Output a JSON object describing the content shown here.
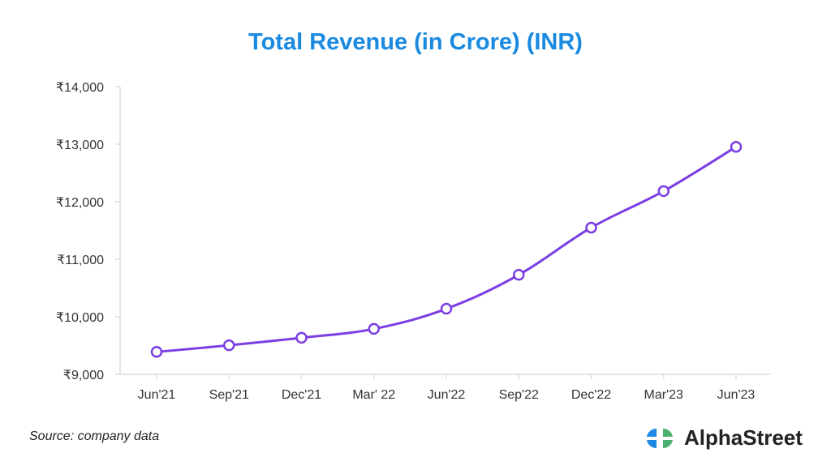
{
  "chart_data": {
    "type": "line",
    "title": "Total Revenue (in Crore) (INR)",
    "xlabel": "",
    "ylabel": "",
    "categories": [
      "Jun'21",
      "Sep'21",
      "Dec'21",
      "Mar' 22",
      "Jun'22",
      "Sep'22",
      "Dec'22",
      "Mar'23",
      "Jun'23"
    ],
    "series": [
      {
        "name": "Total Revenue",
        "values": [
          9390,
          9505,
          9635,
          9790,
          10140,
          10730,
          11550,
          12185,
          12955
        ],
        "color": "#7b3fe4"
      }
    ],
    "ylim": [
      9000,
      14000
    ],
    "yticks": [
      9000,
      10000,
      11000,
      12000,
      13000,
      14000
    ],
    "ytick_labels": [
      "₹9,000",
      "₹10,000",
      "₹11,000",
      "₹12,000",
      "₹13,000",
      "₹14,000"
    ],
    "grid": false,
    "legend": "none"
  },
  "footer": {
    "source": "Source: company data",
    "brand": "AlphaStreet"
  },
  "colors": {
    "title": "#1a8ae0",
    "line": "#7b3fe4",
    "logo_blue": "#1e88e5",
    "logo_green": "#4caf6e"
  }
}
